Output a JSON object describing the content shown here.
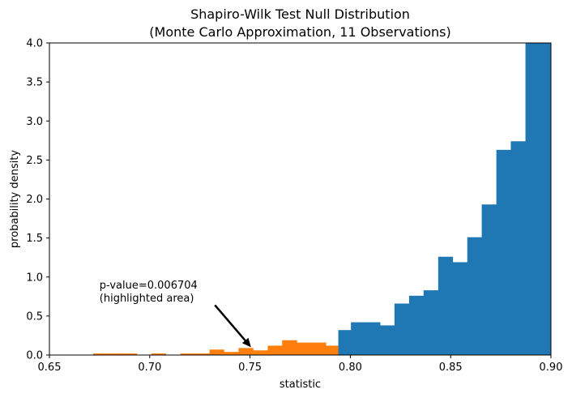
{
  "chart_data": {
    "type": "bar",
    "title": "Shapiro-Wilk Test Null Distribution",
    "subtitle": "(Monte Carlo Approximation, 11 Observations)",
    "xlabel": "statistic",
    "ylabel": "probability density",
    "xlim": [
      0.65,
      0.9
    ],
    "ylim": [
      0,
      4.0
    ],
    "x_ticks": [
      0.65,
      0.7,
      0.75,
      0.8,
      0.85,
      0.9
    ],
    "x_tick_labels": [
      "0.65",
      "0.70",
      "0.75",
      "0.80",
      "0.85",
      "0.90"
    ],
    "y_ticks": [
      0.0,
      0.5,
      1.0,
      1.5,
      2.0,
      2.5,
      3.0,
      3.5,
      4.0
    ],
    "y_tick_labels": [
      "0.0",
      "0.5",
      "1.0",
      "1.5",
      "2.0",
      "2.5",
      "3.0",
      "3.5",
      "4.0"
    ],
    "grid": false,
    "bin_width": 0.00725,
    "series": [
      {
        "name": "",
        "color": "#ff7f0e",
        "bins": [
          {
            "x0": 0.6718,
            "x1": 0.679,
            "value": 0.02
          },
          {
            "x0": 0.679,
            "x1": 0.6863,
            "value": 0.02
          },
          {
            "x0": 0.6863,
            "x1": 0.6935,
            "value": 0.02
          },
          {
            "x0": 0.7008,
            "x1": 0.708,
            "value": 0.02
          },
          {
            "x0": 0.7153,
            "x1": 0.7225,
            "value": 0.02
          },
          {
            "x0": 0.7225,
            "x1": 0.7298,
            "value": 0.02
          },
          {
            "x0": 0.7298,
            "x1": 0.737,
            "value": 0.07
          },
          {
            "x0": 0.737,
            "x1": 0.7443,
            "value": 0.04
          },
          {
            "x0": 0.7443,
            "x1": 0.7515,
            "value": 0.09
          },
          {
            "x0": 0.7515,
            "x1": 0.7588,
            "value": 0.06
          },
          {
            "x0": 0.7588,
            "x1": 0.766,
            "value": 0.12
          },
          {
            "x0": 0.766,
            "x1": 0.7733,
            "value": 0.19
          },
          {
            "x0": 0.7733,
            "x1": 0.7805,
            "value": 0.16
          },
          {
            "x0": 0.7805,
            "x1": 0.7878,
            "value": 0.16
          },
          {
            "x0": 0.7878,
            "x1": 0.794,
            "value": 0.12
          }
        ]
      },
      {
        "name": "",
        "color": "#1f77b4",
        "bins": [
          {
            "x0": 0.794,
            "x1": 0.8003,
            "value": 0.32
          },
          {
            "x0": 0.8003,
            "x1": 0.8075,
            "value": 0.42
          },
          {
            "x0": 0.8075,
            "x1": 0.8148,
            "value": 0.42
          },
          {
            "x0": 0.8148,
            "x1": 0.822,
            "value": 0.38
          },
          {
            "x0": 0.822,
            "x1": 0.8293,
            "value": 0.66
          },
          {
            "x0": 0.8293,
            "x1": 0.8365,
            "value": 0.76
          },
          {
            "x0": 0.8365,
            "x1": 0.8438,
            "value": 0.83
          },
          {
            "x0": 0.8438,
            "x1": 0.851,
            "value": 1.26
          },
          {
            "x0": 0.851,
            "x1": 0.8583,
            "value": 1.19
          },
          {
            "x0": 0.8583,
            "x1": 0.8655,
            "value": 1.51
          },
          {
            "x0": 0.8655,
            "x1": 0.8728,
            "value": 1.93
          },
          {
            "x0": 0.8728,
            "x1": 0.88,
            "value": 2.63
          },
          {
            "x0": 0.88,
            "x1": 0.8873,
            "value": 2.74
          },
          {
            "x0": 0.8873,
            "x1": 0.8945,
            "value": 4.0
          },
          {
            "x0": 0.8945,
            "x1": 0.9,
            "value": 4.0
          }
        ]
      }
    ],
    "annotation": {
      "lines": [
        "p-value=0.006704",
        "(highlighted area)"
      ],
      "text_x": 0.68,
      "text_y": 0.85,
      "arrow_from": [
        0.7325,
        0.64
      ],
      "arrow_to": [
        0.7505,
        0.1
      ]
    }
  }
}
